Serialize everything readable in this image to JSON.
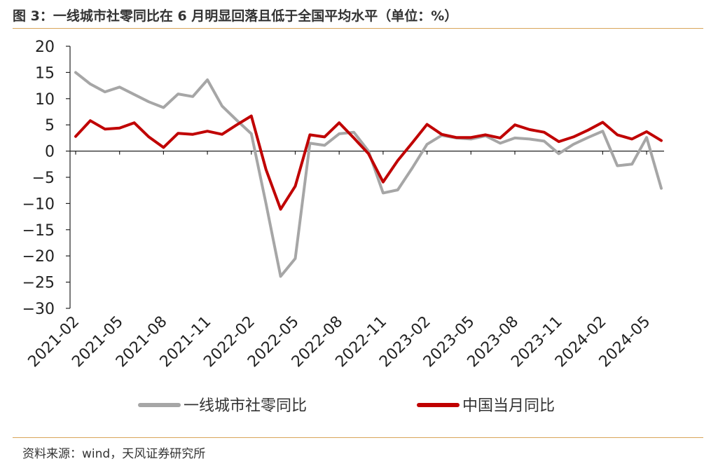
{
  "header": {
    "title": "图 3：一线城市社零同比在 6 月明显回落且低于全国平均水平（单位：%）"
  },
  "footer": {
    "source": "资料来源：wind，天风证券研究所"
  },
  "colors": {
    "series_first_tier": "#a6a6a6",
    "series_national": "#c00000",
    "axis": "#222222",
    "rule": "#d9a55a"
  },
  "chart_data": {
    "type": "line",
    "ylim": [
      -30,
      20
    ],
    "yticks": [
      20,
      15,
      10,
      5,
      0,
      -5,
      -10,
      -15,
      -20,
      -25,
      -30
    ],
    "x": [
      "2021-02",
      "2021-03",
      "2021-04",
      "2021-05",
      "2021-06",
      "2021-07",
      "2021-08",
      "2021-09",
      "2021-10",
      "2021-11",
      "2021-12",
      "2022-01",
      "2022-02",
      "2022-03",
      "2022-04",
      "2022-05",
      "2022-06",
      "2022-07",
      "2022-08",
      "2022-09",
      "2022-10",
      "2022-11",
      "2022-12",
      "2023-01",
      "2023-02",
      "2023-03",
      "2023-04",
      "2023-05",
      "2023-06",
      "2023-07",
      "2023-08",
      "2023-09",
      "2023-10",
      "2023-11",
      "2023-12",
      "2024-01",
      "2024-02",
      "2024-03",
      "2024-04",
      "2024-05",
      "2024-06"
    ],
    "xtick_labels": [
      "2021-02",
      "2021-05",
      "2021-08",
      "2021-11",
      "2022-02",
      "2022-05",
      "2022-08",
      "2022-11",
      "2023-02",
      "2023-05",
      "2023-08",
      "2023-11",
      "2024-02",
      "2024-05"
    ],
    "legend_position": "bottom",
    "grid": false,
    "series": [
      {
        "name": "一线城市社零同比",
        "color": "#a6a6a6",
        "values": [
          15.0,
          12.8,
          11.3,
          12.2,
          10.8,
          9.4,
          8.3,
          10.9,
          10.4,
          13.6,
          8.6,
          5.9,
          3.3,
          -10.0,
          -23.9,
          -20.5,
          1.5,
          1.1,
          3.3,
          3.6,
          0.0,
          -8.0,
          -7.4,
          -3.2,
          1.3,
          3.0,
          2.5,
          2.3,
          2.9,
          1.5,
          2.5,
          2.3,
          1.9,
          -0.5,
          1.3,
          2.6,
          3.8,
          -2.8,
          -2.5,
          2.6,
          -7.1
        ]
      },
      {
        "name": "中国当月同比",
        "color": "#c00000",
        "values": [
          2.8,
          5.8,
          4.2,
          4.4,
          5.4,
          2.7,
          0.7,
          3.4,
          3.2,
          3.8,
          3.2,
          5.0,
          6.7,
          -3.5,
          -11.1,
          -6.7,
          3.1,
          2.7,
          5.4,
          2.5,
          -0.5,
          -5.9,
          -1.8,
          1.6,
          5.1,
          3.2,
          2.6,
          2.6,
          3.1,
          2.5,
          5.0,
          4.1,
          3.6,
          1.8,
          2.7,
          4.0,
          5.5,
          3.1,
          2.3,
          3.7,
          2.0
        ]
      }
    ]
  }
}
